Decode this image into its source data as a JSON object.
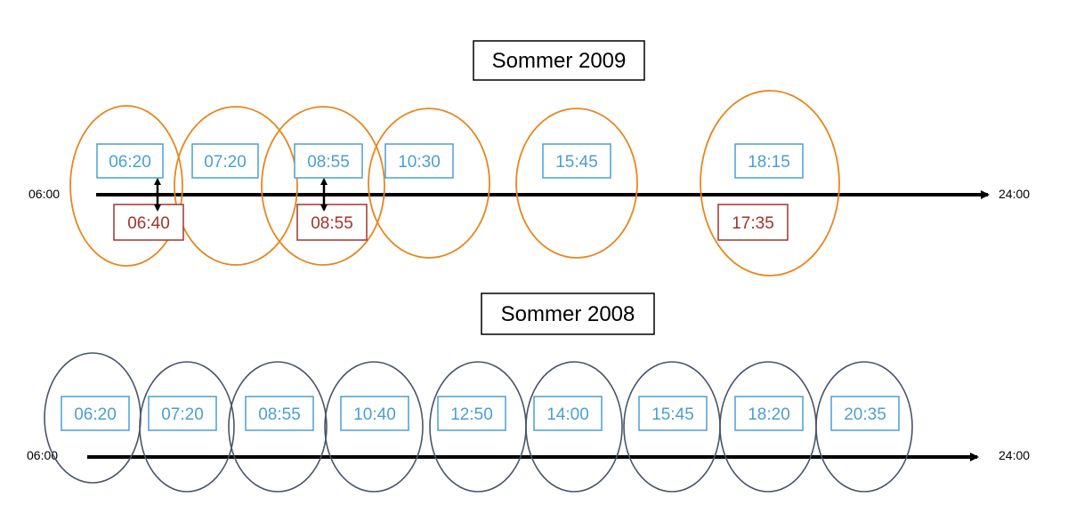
{
  "colors": {
    "orange": "#e8861e",
    "slate": "#4a5568",
    "blue": "#4a9fd4",
    "red": "#a0352b",
    "black": "#000000"
  },
  "sections": [
    {
      "id": "2009",
      "title": "Sommer 2009",
      "axis_start": "06:00",
      "axis_end": "24:00",
      "ellipse_color": "orange",
      "blue_times": [
        "06:20",
        "07:20",
        "08:55",
        "10:30",
        "15:45",
        "18:15"
      ],
      "red_times": [
        "06:40",
        "08:55",
        "17:35"
      ],
      "arrows": [
        {
          "from": "06:20",
          "to": "06:40"
        },
        {
          "from": "08:55",
          "to": "08:55"
        }
      ]
    },
    {
      "id": "2008",
      "title": "Sommer 2008",
      "axis_start": "06:00",
      "axis_end": "24:00",
      "ellipse_color": "slate",
      "blue_times": [
        "06:20",
        "07:20",
        "08:55",
        "10:40",
        "12:50",
        "14:00",
        "15:45",
        "18:20",
        "20:35"
      ],
      "red_times": [],
      "arrows": []
    }
  ]
}
